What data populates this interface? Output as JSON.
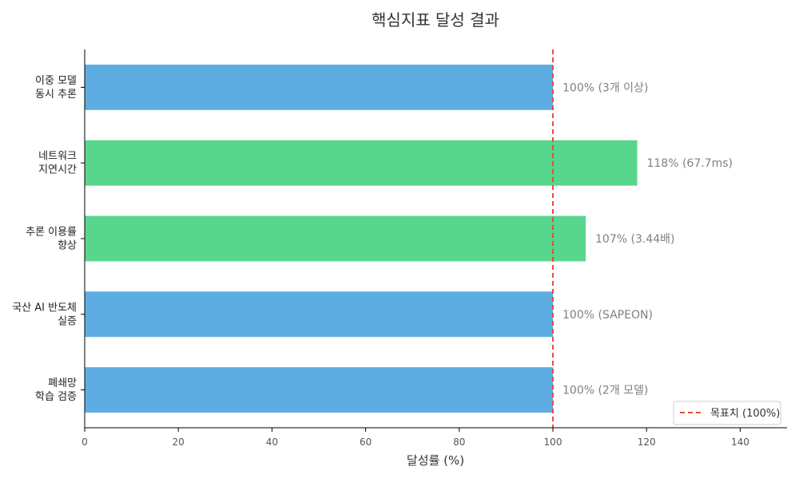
{
  "chart_data": {
    "type": "bar",
    "orientation": "horizontal",
    "title": "핵심지표 달성 결과",
    "xlabel": "달성률 (%)",
    "ylabel": "",
    "xlim": [
      0,
      150
    ],
    "x_ticks": [
      0,
      20,
      40,
      60,
      80,
      100,
      120,
      140
    ],
    "grid": false,
    "categories": [
      [
        "이중 모델",
        "동시 추론"
      ],
      [
        "네트워크",
        "지연시간"
      ],
      [
        "추론 이용률",
        "향상"
      ],
      [
        "국산 AI 반도체",
        "실증"
      ],
      [
        "폐쇄망",
        "학습 검증"
      ]
    ],
    "values": [
      100,
      118,
      107,
      100,
      100
    ],
    "bar_labels": [
      "100% (3개 이상)",
      "118% (67.7ms)",
      "107% (3.44배)",
      "100% (SAPEON)",
      "100% (2개 모델)"
    ],
    "bar_colors": [
      "#5dade2",
      "#58d68d",
      "#58d68d",
      "#5dade2",
      "#5dade2"
    ],
    "reference_line": {
      "value": 100,
      "label": "목표치 (100%)",
      "color": "#e74c3c",
      "style": "dashed"
    },
    "legend_position": "bottom-right"
  }
}
